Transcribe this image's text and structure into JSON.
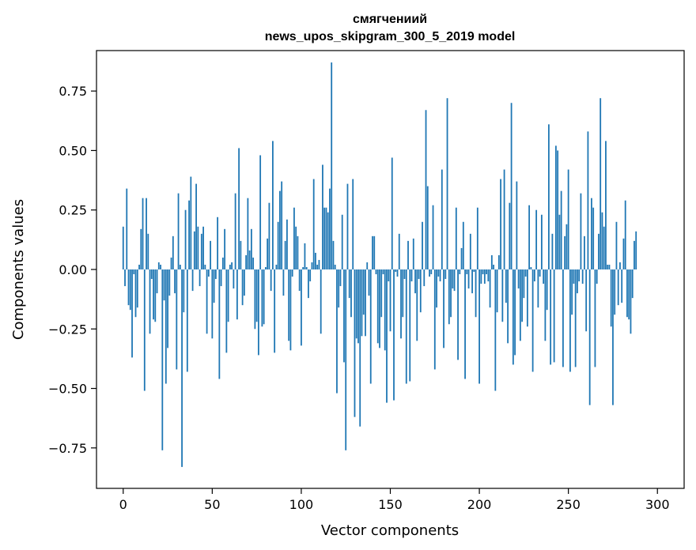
{
  "chart_data": {
    "type": "bar",
    "title": "смягчениий",
    "subtitle": "news_upos_skipgram_300_5_2019 model",
    "xlabel": "Vector components",
    "ylabel": "Components values",
    "xlim": [
      -15,
      315
    ],
    "ylim": [
      -0.92,
      0.92
    ],
    "xticks": [
      0,
      50,
      100,
      150,
      200,
      250,
      300
    ],
    "yticks": [
      -0.75,
      -0.5,
      -0.25,
      0.0,
      0.25,
      0.5,
      0.75
    ],
    "ytick_labels": [
      "−0.75",
      "−0.50",
      "−0.25",
      "0.00",
      "0.25",
      "0.50",
      "0.75"
    ],
    "xtick_labels": [
      "0",
      "50",
      "100",
      "150",
      "200",
      "250",
      "300"
    ],
    "bar_color": "#1f77b4",
    "grid": false,
    "values": [
      0.18,
      -0.07,
      0.34,
      -0.15,
      -0.17,
      -0.37,
      -0.02,
      -0.2,
      -0.16,
      0.02,
      0.17,
      0.3,
      -0.51,
      0.3,
      0.15,
      -0.27,
      -0.04,
      -0.21,
      -0.22,
      -0.1,
      0.03,
      0.02,
      -0.76,
      -0.13,
      -0.48,
      -0.33,
      -0.11,
      0.05,
      0.14,
      -0.1,
      -0.42,
      0.32,
      0.02,
      -0.83,
      -0.18,
      0.25,
      -0.43,
      0.29,
      0.39,
      -0.09,
      0.16,
      0.36,
      0.18,
      -0.07,
      0.15,
      0.18,
      0.02,
      -0.27,
      -0.03,
      0.12,
      -0.29,
      -0.14,
      -0.04,
      0.22,
      -0.46,
      -0.07,
      0.05,
      0.17,
      -0.35,
      -0.22,
      0.02,
      0.03,
      -0.08,
      0.32,
      -0.21,
      0.51,
      0.12,
      -0.15,
      -0.11,
      0.06,
      0.3,
      0.08,
      0.17,
      0.05,
      -0.25,
      -0.22,
      -0.36,
      0.48,
      -0.24,
      -0.23,
      0.01,
      0.13,
      0.28,
      -0.09,
      0.54,
      -0.35,
      0.02,
      0.2,
      0.33,
      0.37,
      -0.11,
      0.12,
      0.21,
      -0.3,
      -0.34,
      -0.03,
      0.26,
      0.18,
      0.14,
      -0.09,
      -0.32,
      0.01,
      0.11,
      0.01,
      -0.12,
      -0.05,
      0.03,
      0.38,
      0.07,
      0.02,
      0.04,
      -0.27,
      0.44,
      0.26,
      0.26,
      0.24,
      0.34,
      0.87,
      0.12,
      0.02,
      -0.52,
      -0.16,
      -0.07,
      0.23,
      -0.39,
      -0.76,
      0.36,
      -0.12,
      -0.2,
      0.38,
      -0.62,
      -0.29,
      -0.31,
      -0.66,
      -0.28,
      -0.19,
      -0.28,
      0.03,
      -0.11,
      -0.48,
      0.14,
      0.14,
      -0.02,
      -0.31,
      -0.33,
      -0.2,
      -0.02,
      -0.34,
      -0.56,
      -0.05,
      -0.26,
      0.47,
      -0.55,
      -0.01,
      -0.03,
      0.15,
      -0.29,
      -0.2,
      -0.04,
      -0.48,
      0.12,
      -0.47,
      -0.05,
      0.13,
      -0.1,
      -0.3,
      -0.04,
      -0.18,
      0.2,
      -0.07,
      0.67,
      0.35,
      -0.03,
      -0.02,
      0.27,
      -0.42,
      -0.16,
      -0.03,
      -0.05,
      0.42,
      -0.33,
      -0.04,
      0.72,
      -0.23,
      -0.2,
      -0.08,
      -0.09,
      0.26,
      -0.38,
      -0.02,
      0.09,
      0.2,
      -0.46,
      -0.02,
      -0.08,
      0.15,
      -0.1,
      -0.01,
      -0.2,
      0.26,
      -0.48,
      -0.06,
      -0.02,
      -0.06,
      -0.02,
      -0.05,
      -0.16,
      0.06,
      0.02,
      -0.51,
      -0.18,
      0.06,
      0.38,
      -0.22,
      0.42,
      -0.14,
      -0.31,
      0.28,
      0.7,
      -0.4,
      -0.36,
      0.37,
      -0.08,
      -0.3,
      -0.22,
      -0.12,
      -0.03,
      -0.24,
      0.27,
      0.01,
      -0.43,
      -0.05,
      0.25,
      -0.16,
      -0.03,
      0.23,
      -0.06,
      -0.3,
      -0.17,
      0.61,
      -0.4,
      0.15,
      -0.39,
      0.52,
      0.5,
      0.23,
      0.33,
      -0.41,
      0.14,
      0.19,
      0.42,
      -0.43,
      -0.19,
      -0.06,
      -0.41,
      -0.1,
      -0.05,
      0.32,
      -0.06,
      0.14,
      -0.26,
      0.58,
      -0.57,
      0.3,
      0.26,
      -0.41,
      -0.06,
      0.15,
      0.72,
      0.24,
      0.18,
      0.54,
      0.02,
      0.02,
      -0.24,
      -0.57,
      -0.19,
      0.2,
      -0.15,
      0.03,
      -0.14,
      0.13,
      0.29,
      -0.2,
      -0.21,
      -0.27,
      -0.12,
      0.12,
      0.16
    ]
  }
}
